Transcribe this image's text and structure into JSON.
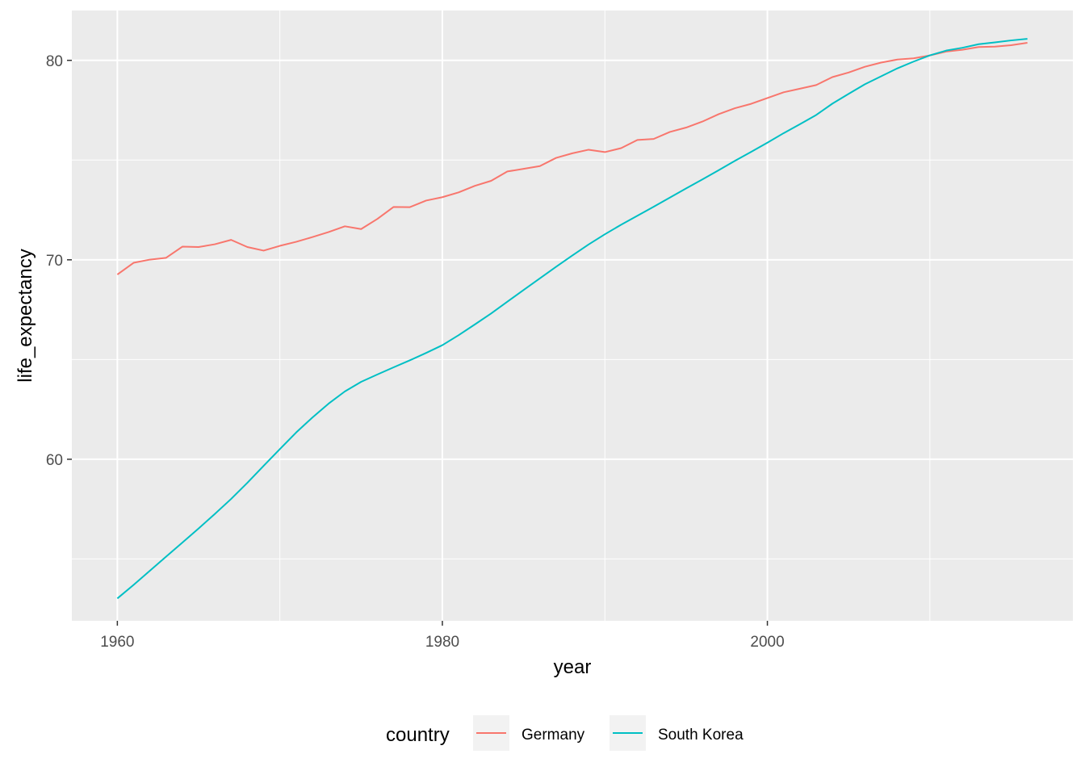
{
  "chart_data": {
    "type": "line",
    "title": "",
    "xlabel": "year",
    "ylabel": "life_expectancy",
    "xlim": [
      1957.2,
      2018.8
    ],
    "ylim": [
      51.9,
      82.5
    ],
    "x_ticks": [
      1960,
      1980,
      2000
    ],
    "x_tick_labels": [
      "1960",
      "1980",
      "2000"
    ],
    "x_minor_ticks": [
      1970,
      1990,
      2010
    ],
    "y_ticks": [
      60,
      70,
      80
    ],
    "y_tick_labels": [
      "60",
      "70",
      "80"
    ],
    "y_minor_ticks": [
      55,
      65,
      75
    ],
    "grid": true,
    "legend": {
      "title": "country",
      "position": "bottom"
    },
    "colors": {
      "Germany": "#F8766D",
      "South Korea": "#00BFC4",
      "panel": "#EBEBEB",
      "grid": "#FFFFFF"
    },
    "x": [
      1960,
      1961,
      1962,
      1963,
      1964,
      1965,
      1966,
      1967,
      1968,
      1969,
      1970,
      1971,
      1972,
      1973,
      1974,
      1975,
      1976,
      1977,
      1978,
      1979,
      1980,
      1981,
      1982,
      1983,
      1984,
      1985,
      1986,
      1987,
      1988,
      1989,
      1990,
      1991,
      1992,
      1993,
      1994,
      1995,
      1996,
      1997,
      1998,
      1999,
      2000,
      2001,
      2002,
      2003,
      2004,
      2005,
      2006,
      2007,
      2008,
      2009,
      2010,
      2011,
      2012,
      2013,
      2014,
      2015,
      2016
    ],
    "series": [
      {
        "name": "Germany",
        "values": [
          69.26,
          69.85,
          70.01,
          70.1,
          70.66,
          70.64,
          70.78,
          71.0,
          70.64,
          70.46,
          70.7,
          70.9,
          71.14,
          71.39,
          71.68,
          71.54,
          72.05,
          72.65,
          72.64,
          72.97,
          73.14,
          73.38,
          73.71,
          73.96,
          74.43,
          74.56,
          74.7,
          75.11,
          75.34,
          75.52,
          75.4,
          75.6,
          76.01,
          76.06,
          76.41,
          76.63,
          76.93,
          77.3,
          77.6,
          77.82,
          78.11,
          78.4,
          78.58,
          78.76,
          79.16,
          79.39,
          79.68,
          79.89,
          80.04,
          80.1,
          80.25,
          80.44,
          80.53,
          80.67,
          80.69,
          80.76,
          80.88
        ]
      },
      {
        "name": "South Korea",
        "values": [
          53.02,
          53.7,
          54.41,
          55.12,
          55.82,
          56.53,
          57.26,
          58.01,
          58.82,
          59.67,
          60.51,
          61.34,
          62.09,
          62.79,
          63.4,
          63.88,
          64.25,
          64.61,
          64.96,
          65.33,
          65.72,
          66.22,
          66.76,
          67.31,
          67.9,
          68.49,
          69.07,
          69.65,
          70.22,
          70.77,
          71.28,
          71.76,
          72.21,
          72.66,
          73.12,
          73.58,
          74.03,
          74.49,
          74.96,
          75.41,
          75.87,
          76.35,
          76.8,
          77.26,
          77.83,
          78.32,
          78.8,
          79.2,
          79.6,
          79.94,
          80.25,
          80.49,
          80.63,
          80.81,
          80.9,
          81.0,
          81.08
        ]
      }
    ]
  }
}
